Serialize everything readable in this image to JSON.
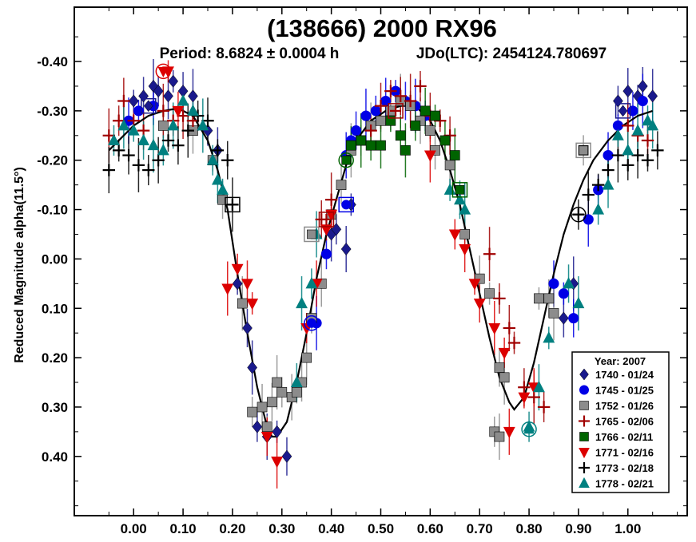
{
  "chart_data": {
    "type": "scatter",
    "title": "(138666) 2000 RX96",
    "subtitle_period": "Period: 8.6824 ± 0.0004 h",
    "subtitle_epoch": "JDo(LTC): 2454124.780697",
    "ylabel": "Reduced Magnitude alpha(11.5°)",
    "xlabel": "",
    "xlim": [
      -0.12,
      1.12
    ],
    "ylim": [
      -0.51,
      0.52
    ],
    "y_inverted": true,
    "x_ticks": [
      "0.00",
      "0.10",
      "0.20",
      "0.30",
      "0.40",
      "0.50",
      "0.60",
      "0.70",
      "0.80",
      "0.90",
      "1.00"
    ],
    "y_ticks": [
      "-0.40",
      "-0.30",
      "-0.20",
      "-0.10",
      "0.00",
      "0.10",
      "0.20",
      "0.30",
      "0.40"
    ],
    "legend_title": "Year: 2007",
    "legend_position": "bottom-right",
    "series": [
      {
        "name": "1740 - 01/24",
        "marker": "diamond",
        "color": "#1a1a8c",
        "points": [
          [
            0.0,
            -0.32
          ],
          [
            0.02,
            -0.33
          ],
          [
            0.04,
            -0.35
          ],
          [
            0.05,
            -0.34
          ],
          [
            0.07,
            -0.33
          ],
          [
            0.08,
            -0.36
          ],
          [
            0.1,
            -0.34
          ],
          [
            0.12,
            -0.33
          ],
          [
            0.15,
            -0.26
          ],
          [
            0.17,
            -0.22
          ],
          [
            0.21,
            0.05
          ],
          [
            0.23,
            0.14
          ],
          [
            0.24,
            0.22
          ],
          [
            0.25,
            0.34
          ],
          [
            0.27,
            0.36
          ],
          [
            0.29,
            0.35
          ],
          [
            0.31,
            0.4
          ],
          [
            0.4,
            -0.05
          ],
          [
            0.41,
            -0.06
          ],
          [
            0.43,
            -0.02
          ],
          [
            0.44,
            -0.11
          ],
          [
            0.87,
            0.12
          ],
          [
            0.89,
            0.05
          ],
          [
            0.98,
            -0.32
          ],
          [
            1.0,
            -0.34
          ],
          [
            1.02,
            -0.33
          ],
          [
            1.03,
            -0.35
          ],
          [
            1.05,
            -0.33
          ]
        ]
      },
      {
        "name": "1745 - 01/25",
        "marker": "circle",
        "color": "#0000e6",
        "points": [
          [
            -0.01,
            -0.28
          ],
          [
            0.01,
            -0.3
          ],
          [
            0.04,
            -0.31
          ],
          [
            0.37,
            0.13
          ],
          [
            0.39,
            -0.01
          ],
          [
            0.43,
            -0.21
          ],
          [
            0.44,
            -0.24
          ],
          [
            0.45,
            -0.26
          ],
          [
            0.47,
            -0.29
          ],
          [
            0.49,
            -0.3
          ],
          [
            0.51,
            -0.32
          ],
          [
            0.53,
            -0.34
          ],
          [
            0.55,
            -0.32
          ],
          [
            0.57,
            -0.31
          ],
          [
            0.59,
            -0.29
          ],
          [
            0.85,
            0.05
          ],
          [
            0.87,
            0.07
          ],
          [
            0.89,
            0.12
          ],
          [
            0.92,
            -0.08
          ],
          [
            0.94,
            -0.14
          ],
          [
            0.96,
            -0.21
          ],
          [
            0.98,
            -0.27
          ],
          [
            1.01,
            -0.3
          ],
          [
            1.03,
            -0.32
          ]
        ]
      },
      {
        "name": "1752 - 01/26",
        "marker": "square",
        "color": "#8c8c8c",
        "points": [
          [
            0.06,
            -0.27
          ],
          [
            0.12,
            -0.26
          ],
          [
            0.16,
            -0.2
          ],
          [
            0.18,
            -0.12
          ],
          [
            0.22,
            0.09
          ],
          [
            0.24,
            0.31
          ],
          [
            0.26,
            0.3
          ],
          [
            0.27,
            0.34
          ],
          [
            0.28,
            0.29
          ],
          [
            0.29,
            0.25
          ],
          [
            0.3,
            0.27
          ],
          [
            0.32,
            0.28
          ],
          [
            0.33,
            0.27
          ],
          [
            0.34,
            0.25
          ],
          [
            0.35,
            0.2
          ],
          [
            0.36,
            0.12
          ],
          [
            0.38,
            0.05
          ],
          [
            0.4,
            -0.09
          ],
          [
            0.42,
            -0.15
          ],
          [
            0.44,
            -0.22
          ],
          [
            0.46,
            -0.24
          ],
          [
            0.48,
            -0.27
          ],
          [
            0.5,
            -0.28
          ],
          [
            0.52,
            -0.3
          ],
          [
            0.54,
            -0.32
          ],
          [
            0.56,
            -0.31
          ],
          [
            0.58,
            -0.28
          ],
          [
            0.6,
            -0.26
          ],
          [
            0.61,
            -0.22
          ],
          [
            0.64,
            -0.19
          ],
          [
            0.67,
            -0.05
          ],
          [
            0.7,
            0.04
          ],
          [
            0.72,
            0.07
          ],
          [
            0.74,
            0.22
          ],
          [
            0.75,
            0.24
          ],
          [
            0.73,
            0.35
          ],
          [
            0.74,
            0.36
          ],
          [
            0.82,
            0.08
          ],
          [
            0.84,
            0.08
          ],
          [
            0.85,
            0.11
          ],
          [
            0.91,
            -0.22
          ]
        ]
      },
      {
        "name": "1765 - 02/06",
        "marker": "plus",
        "color": "#a00000",
        "points": [
          [
            -0.05,
            -0.25
          ],
          [
            -0.03,
            -0.28
          ],
          [
            -0.02,
            -0.32
          ],
          [
            0.0,
            -0.28
          ],
          [
            0.02,
            -0.26
          ],
          [
            0.06,
            -0.3
          ],
          [
            0.08,
            -0.28
          ],
          [
            0.1,
            -0.29
          ],
          [
            0.12,
            -0.28
          ],
          [
            0.38,
            -0.08
          ],
          [
            0.4,
            -0.12
          ],
          [
            0.48,
            -0.26
          ],
          [
            0.5,
            -0.31
          ],
          [
            0.52,
            -0.34
          ],
          [
            0.54,
            -0.33
          ],
          [
            0.56,
            -0.32
          ],
          [
            0.58,
            -0.35
          ],
          [
            0.6,
            -0.29
          ],
          [
            0.62,
            -0.28
          ],
          [
            0.64,
            -0.25
          ],
          [
            0.72,
            -0.01
          ],
          [
            0.74,
            0.08
          ],
          [
            0.76,
            0.14
          ],
          [
            0.77,
            0.17
          ],
          [
            0.79,
            0.26
          ],
          [
            0.81,
            0.28
          ],
          [
            0.83,
            0.3
          ],
          [
            1.0,
            -0.27
          ],
          [
            1.02,
            -0.25
          ],
          [
            1.04,
            -0.24
          ]
        ]
      },
      {
        "name": "1766 - 02/11",
        "marker": "square",
        "color": "#006400",
        "points": [
          [
            0.44,
            -0.23
          ],
          [
            0.46,
            -0.24
          ],
          [
            0.48,
            -0.23
          ],
          [
            0.5,
            -0.23
          ],
          [
            0.52,
            -0.28
          ],
          [
            0.54,
            -0.25
          ],
          [
            0.55,
            -0.22
          ],
          [
            0.57,
            -0.27
          ],
          [
            0.59,
            -0.3
          ],
          [
            0.61,
            -0.29
          ],
          [
            0.63,
            -0.24
          ],
          [
            0.65,
            -0.21
          ]
        ]
      },
      {
        "name": "1771 - 02/16",
        "marker": "triangle-down",
        "color": "#dc0000",
        "points": [
          [
            0.07,
            -0.38
          ],
          [
            0.09,
            -0.3
          ],
          [
            0.19,
            0.06
          ],
          [
            0.21,
            0.02
          ],
          [
            0.23,
            0.05
          ],
          [
            0.24,
            0.09
          ],
          [
            0.27,
            0.36
          ],
          [
            0.29,
            0.41
          ],
          [
            0.35,
            0.14
          ],
          [
            0.37,
            0.05
          ],
          [
            0.39,
            -0.06
          ],
          [
            0.4,
            -0.09
          ],
          [
            0.6,
            -0.21
          ],
          [
            0.65,
            -0.05
          ],
          [
            0.67,
            -0.02
          ],
          [
            0.69,
            0.05
          ],
          [
            0.7,
            0.09
          ],
          [
            0.73,
            0.14
          ],
          [
            0.75,
            0.19
          ],
          [
            0.76,
            0.35
          ],
          [
            0.79,
            0.28
          ],
          [
            0.81,
            0.26
          ]
        ]
      },
      {
        "name": "1773 - 02/18",
        "marker": "plus",
        "color": "#000000",
        "points": [
          [
            -0.05,
            -0.18
          ],
          [
            -0.03,
            -0.22
          ],
          [
            -0.01,
            -0.21
          ],
          [
            0.01,
            -0.19
          ],
          [
            0.03,
            -0.18
          ],
          [
            0.05,
            -0.2
          ],
          [
            0.07,
            -0.24
          ],
          [
            0.09,
            -0.23
          ],
          [
            0.11,
            -0.26
          ],
          [
            0.13,
            -0.29
          ],
          [
            0.15,
            -0.28
          ],
          [
            0.17,
            -0.22
          ],
          [
            0.19,
            -0.2
          ],
          [
            0.2,
            -0.11
          ],
          [
            0.9,
            -0.09
          ],
          [
            0.92,
            -0.13
          ],
          [
            0.94,
            -0.15
          ],
          [
            0.96,
            -0.18
          ],
          [
            0.98,
            -0.21
          ],
          [
            1.0,
            -0.19
          ],
          [
            1.02,
            -0.21
          ],
          [
            1.04,
            -0.2
          ],
          [
            1.06,
            -0.22
          ]
        ]
      },
      {
        "name": "1778 - 02/21",
        "marker": "triangle-up",
        "color": "#008080",
        "points": [
          [
            -0.04,
            -0.24
          ],
          [
            -0.02,
            -0.27
          ],
          [
            0.0,
            -0.26
          ],
          [
            0.02,
            -0.24
          ],
          [
            0.04,
            -0.23
          ],
          [
            0.06,
            -0.22
          ],
          [
            0.08,
            -0.27
          ],
          [
            0.1,
            -0.32
          ],
          [
            0.12,
            -0.3
          ],
          [
            0.14,
            -0.27
          ],
          [
            0.16,
            -0.2
          ],
          [
            0.17,
            -0.16
          ],
          [
            0.18,
            -0.14
          ],
          [
            0.33,
            0.25
          ],
          [
            0.34,
            0.09
          ],
          [
            0.36,
            0.05
          ],
          [
            0.37,
            -0.05
          ],
          [
            0.64,
            -0.14
          ],
          [
            0.66,
            -0.12
          ],
          [
            0.67,
            -0.1
          ],
          [
            0.8,
            0.34
          ],
          [
            0.82,
            0.26
          ],
          [
            0.84,
            0.16
          ],
          [
            0.88,
            0.05
          ],
          [
            0.9,
            0.09
          ],
          [
            0.94,
            -0.1
          ],
          [
            0.96,
            -0.15
          ],
          [
            0.98,
            -0.25
          ],
          [
            1.0,
            -0.22
          ],
          [
            1.02,
            -0.26
          ],
          [
            1.04,
            -0.28
          ],
          [
            1.05,
            -0.27
          ]
        ]
      }
    ],
    "fit_curve": {
      "name": "Fourier fit",
      "points": [
        [
          -0.05,
          -0.22
        ],
        [
          0.0,
          -0.27
        ],
        [
          0.03,
          -0.29
        ],
        [
          0.06,
          -0.3
        ],
        [
          0.09,
          -0.305
        ],
        [
          0.12,
          -0.29
        ],
        [
          0.15,
          -0.24
        ],
        [
          0.17,
          -0.18
        ],
        [
          0.19,
          -0.1
        ],
        [
          0.21,
          0.03
        ],
        [
          0.23,
          0.15
        ],
        [
          0.25,
          0.26
        ],
        [
          0.27,
          0.34
        ],
        [
          0.28,
          0.36
        ],
        [
          0.29,
          0.36
        ],
        [
          0.31,
          0.33
        ],
        [
          0.33,
          0.25
        ],
        [
          0.35,
          0.15
        ],
        [
          0.37,
          0.04
        ],
        [
          0.39,
          -0.05
        ],
        [
          0.41,
          -0.12
        ],
        [
          0.43,
          -0.19
        ],
        [
          0.45,
          -0.24
        ],
        [
          0.48,
          -0.28
        ],
        [
          0.51,
          -0.3
        ],
        [
          0.54,
          -0.31
        ],
        [
          0.57,
          -0.31
        ],
        [
          0.6,
          -0.28
        ],
        [
          0.62,
          -0.24
        ],
        [
          0.64,
          -0.18
        ],
        [
          0.66,
          -0.11
        ],
        [
          0.68,
          -0.02
        ],
        [
          0.7,
          0.07
        ],
        [
          0.72,
          0.16
        ],
        [
          0.74,
          0.24
        ],
        [
          0.76,
          0.29
        ],
        [
          0.77,
          0.305
        ],
        [
          0.79,
          0.28
        ],
        [
          0.81,
          0.21
        ],
        [
          0.83,
          0.12
        ],
        [
          0.85,
          0.03
        ],
        [
          0.87,
          -0.05
        ],
        [
          0.89,
          -0.11
        ],
        [
          0.91,
          -0.16
        ],
        [
          0.93,
          -0.2
        ],
        [
          0.96,
          -0.24
        ],
        [
          0.99,
          -0.27
        ],
        [
          1.02,
          -0.29
        ],
        [
          1.05,
          -0.3
        ]
      ]
    },
    "highlight_points": [
      {
        "series": 5,
        "x": 0.06,
        "y": -0.38,
        "shape": "circle"
      },
      {
        "series": 3,
        "x": 0.53,
        "y": -0.3,
        "shape": "square"
      },
      {
        "series": 0,
        "x": 0.03,
        "y": -0.31,
        "shape": "square"
      },
      {
        "series": 1,
        "x": 0.36,
        "y": 0.13,
        "shape": "circle"
      },
      {
        "series": 1,
        "x": 0.43,
        "y": -0.11,
        "shape": "square"
      },
      {
        "series": 2,
        "x": 0.36,
        "y": -0.05,
        "shape": "square"
      },
      {
        "series": 2,
        "x": 0.91,
        "y": -0.22,
        "shape": "square"
      },
      {
        "series": 4,
        "x": 0.43,
        "y": -0.2,
        "shape": "circle"
      },
      {
        "series": 4,
        "x": 0.66,
        "y": -0.14,
        "shape": "square"
      },
      {
        "series": 3,
        "x": 0.39,
        "y": -0.08,
        "shape": "square"
      },
      {
        "series": 6,
        "x": 0.2,
        "y": -0.11,
        "shape": "square"
      },
      {
        "series": 6,
        "x": 0.9,
        "y": -0.09,
        "shape": "circle"
      },
      {
        "series": 7,
        "x": 0.8,
        "y": 0.345,
        "shape": "circle"
      },
      {
        "series": 0,
        "x": 0.99,
        "y": -0.3,
        "shape": "square"
      }
    ]
  }
}
